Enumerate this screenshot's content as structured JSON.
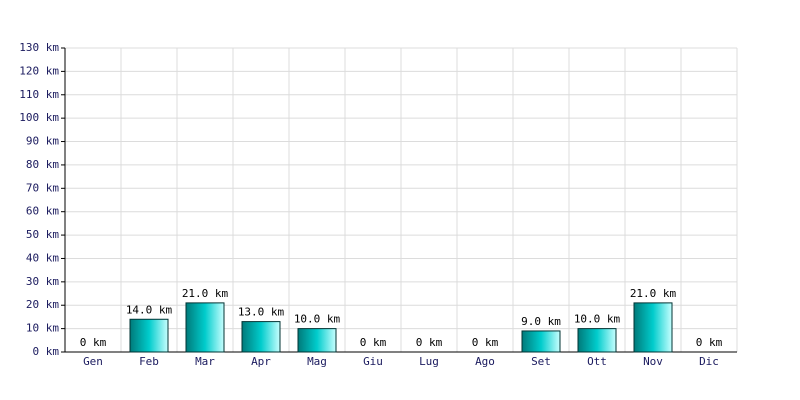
{
  "chart_data": {
    "type": "bar",
    "categories": [
      "Gen",
      "Feb",
      "Mar",
      "Apr",
      "Mag",
      "Giu",
      "Lug",
      "Ago",
      "Set",
      "Ott",
      "Nov",
      "Dic"
    ],
    "values": [
      0,
      14,
      21,
      13,
      10,
      0,
      0,
      0,
      9,
      10,
      21,
      0
    ],
    "value_labels": [
      "0 km",
      "14.0 km",
      "21.0 km",
      "13.0 km",
      "10.0 km",
      "0 km",
      "0 km",
      "0 km",
      "9.0 km",
      "10.0 km",
      "21.0 km",
      "0 km"
    ],
    "color": "#00cccc",
    "ylim": [
      0,
      130
    ],
    "yticks": [
      {
        "value": 0,
        "label": "0 km"
      },
      {
        "value": 10,
        "label": "10 km"
      },
      {
        "value": 20,
        "label": "20 km"
      },
      {
        "value": 30,
        "label": "30 km"
      },
      {
        "value": 40,
        "label": "40 km"
      },
      {
        "value": 50,
        "label": "50 km"
      },
      {
        "value": 60,
        "label": "60 km"
      },
      {
        "value": 70,
        "label": "70 km"
      },
      {
        "value": 80,
        "label": "80 km"
      },
      {
        "value": 90,
        "label": "90 km"
      },
      {
        "value": 100,
        "label": "100 km"
      },
      {
        "value": 110,
        "label": "110 km"
      },
      {
        "value": 120,
        "label": "120 km"
      },
      {
        "value": 130,
        "label": "130 km"
      }
    ],
    "grid": true
  }
}
